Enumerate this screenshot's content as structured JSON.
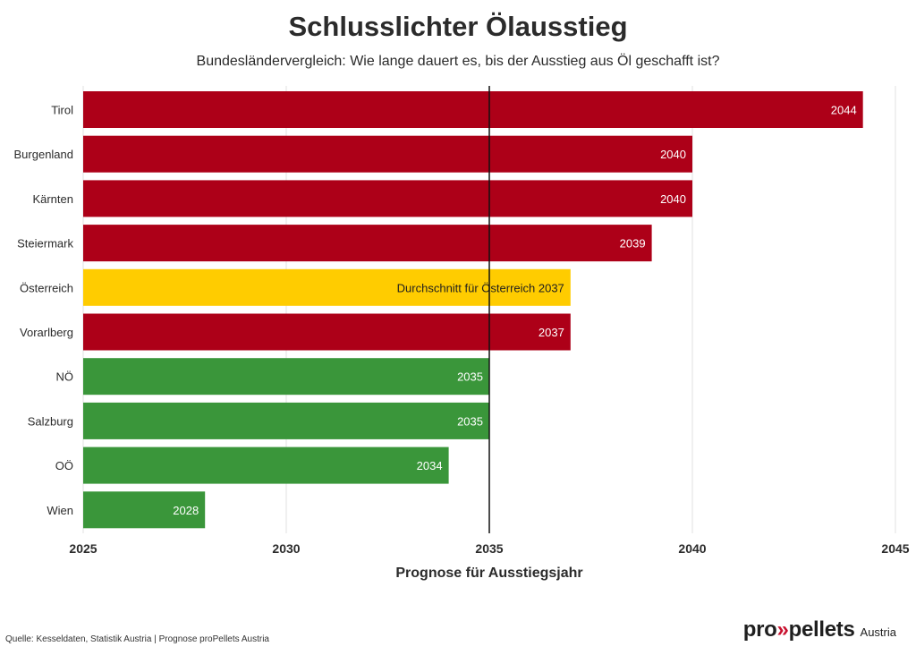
{
  "header": {
    "title": "Schlusslichter Ölausstieg",
    "subtitle": "Bundesländervergleich: Wie lange dauert es, bis der Ausstieg aus Öl geschafft ist?"
  },
  "chart_data": {
    "type": "bar",
    "orientation": "horizontal",
    "categories": [
      "Tirol",
      "Burgenland",
      "Kärnten",
      "Steiermark",
      "Österreich",
      "Vorarlberg",
      "NÖ",
      "Salzburg",
      "OÖ",
      "Wien"
    ],
    "values": [
      2044.2,
      2040,
      2040,
      2039,
      2037,
      2037,
      2035,
      2035,
      2034,
      2028
    ],
    "data_labels": [
      "2044",
      "2040",
      "2040",
      "2039",
      "Durchschnitt für Österreich 2037",
      "2037",
      "2035",
      "2035",
      "2034",
      "2028"
    ],
    "bar_colors": [
      "#ad0018",
      "#ad0018",
      "#ad0018",
      "#ad0018",
      "#ffcc00",
      "#ad0018",
      "#3a963a",
      "#3a963a",
      "#3a963a",
      "#3a963a"
    ],
    "xlabel": "Prognose für Ausstiegsjahr",
    "xlim": [
      2025,
      2045
    ],
    "xticks": [
      2025,
      2030,
      2035,
      2040,
      2045
    ],
    "reference_line": 2035,
    "grid": true
  },
  "footer": {
    "source": "Quelle: Kesseldaten, Statistik Austria | Prognose proPellets Austria",
    "logo_pro": "pro",
    "logo_arrows": "»",
    "logo_pellets": "pellets",
    "logo_sub": "Austria"
  }
}
